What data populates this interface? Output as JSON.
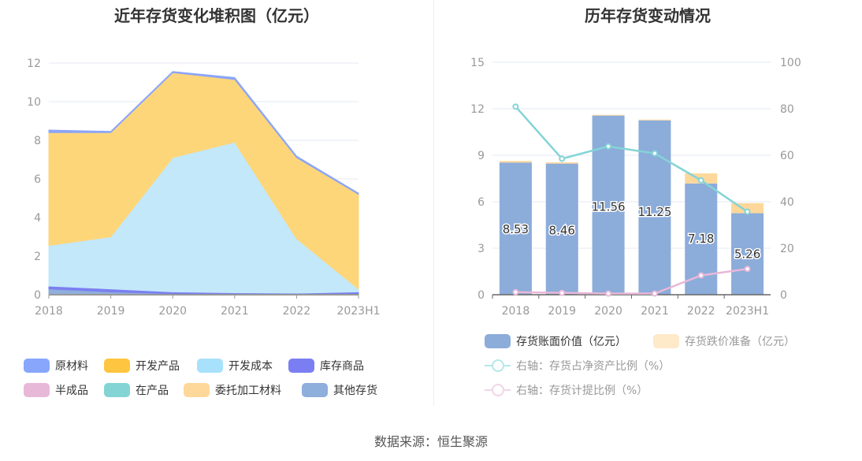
{
  "left": {
    "title": "近年存货变化堆积图（亿元）",
    "chart_data": {
      "type": "area",
      "stacked": true,
      "categories": [
        "2018",
        "2019",
        "2020",
        "2021",
        "2022",
        "2023H1"
      ],
      "ylim": [
        0,
        12
      ],
      "yticks": [
        0,
        2,
        4,
        6,
        8,
        10,
        12
      ],
      "series": [
        {
          "name": "其他存货",
          "color": "#8eaedb",
          "values": [
            0.3,
            0.15,
            0.05,
            0.05,
            0.03,
            0.05
          ]
        },
        {
          "name": "半成品",
          "color": "#e8b8d8",
          "values": [
            0,
            0,
            0,
            0,
            0,
            0
          ]
        },
        {
          "name": "在产品",
          "color": "#84d4d6",
          "values": [
            0,
            0,
            0,
            0,
            0,
            0
          ]
        },
        {
          "name": "委托加工材料",
          "color": "#fed89a",
          "values": [
            0,
            0,
            0,
            0,
            0,
            0
          ]
        },
        {
          "name": "库存商品",
          "color": "#7b7ff0",
          "values": [
            0.15,
            0.15,
            0.1,
            0.05,
            0.05,
            0.1
          ]
        },
        {
          "name": "开发成本",
          "color": "#c2e8fa",
          "values": [
            2.1,
            2.7,
            6.95,
            7.8,
            2.82,
            0.15
          ]
        },
        {
          "name": "开发产品",
          "color": "#fed67a",
          "values": [
            5.85,
            5.4,
            4.4,
            3.25,
            4.2,
            4.9
          ]
        },
        {
          "name": "原材料",
          "color": "#8ba5f8",
          "values": [
            0.13,
            0.06,
            0.06,
            0.1,
            0.08,
            0.06
          ]
        }
      ],
      "legend": [
        {
          "name": "原材料",
          "color": "#87a6fc"
        },
        {
          "name": "开发产品",
          "color": "#fec540"
        },
        {
          "name": "开发成本",
          "color": "#a8e1fb"
        },
        {
          "name": "库存商品",
          "color": "#7b7ef2"
        },
        {
          "name": "半成品",
          "color": "#e8b8d8"
        },
        {
          "name": "在产品",
          "color": "#84d4d6"
        },
        {
          "name": "委托加工材料",
          "color": "#fed89a"
        },
        {
          "name": "其他存货",
          "color": "#8eaedb"
        }
      ]
    }
  },
  "right": {
    "title": "历年存货变动情况",
    "chart_data": {
      "type": "bar+line",
      "categories": [
        "2018",
        "2019",
        "2020",
        "2021",
        "2022",
        "2023H1"
      ],
      "ylim": [
        0,
        15
      ],
      "yticks": [
        0,
        3,
        6,
        9,
        12,
        15
      ],
      "y2lim": [
        0,
        100
      ],
      "y2ticks": [
        0,
        20,
        40,
        60,
        80,
        100
      ],
      "bars": [
        {
          "name": "存货账面价值（亿元）",
          "color": "#8cacda",
          "values": [
            8.53,
            8.46,
            11.56,
            11.25,
            7.18,
            5.26
          ],
          "labels": [
            "8.53",
            "8.46",
            "11.56",
            "11.25",
            "7.18",
            "5.26"
          ]
        },
        {
          "name": "存货跌价准备（亿元）",
          "color": "#fed89a",
          "values": [
            0.1,
            0.08,
            0.05,
            0.05,
            0.65,
            0.65
          ]
        }
      ],
      "lines": [
        {
          "name": "右轴：存货占净资产比例（%）",
          "color": "#84d4d6",
          "values": [
            80.9,
            58.5,
            63.8,
            60.8,
            49.2,
            35.7
          ]
        },
        {
          "name": "右轴：存货计提比例（%）",
          "color": "#e8b8d8",
          "values": [
            1.1,
            0.8,
            0.5,
            0.5,
            8.3,
            11.1
          ]
        }
      ]
    }
  },
  "footer": "数据来源：恒生聚源"
}
